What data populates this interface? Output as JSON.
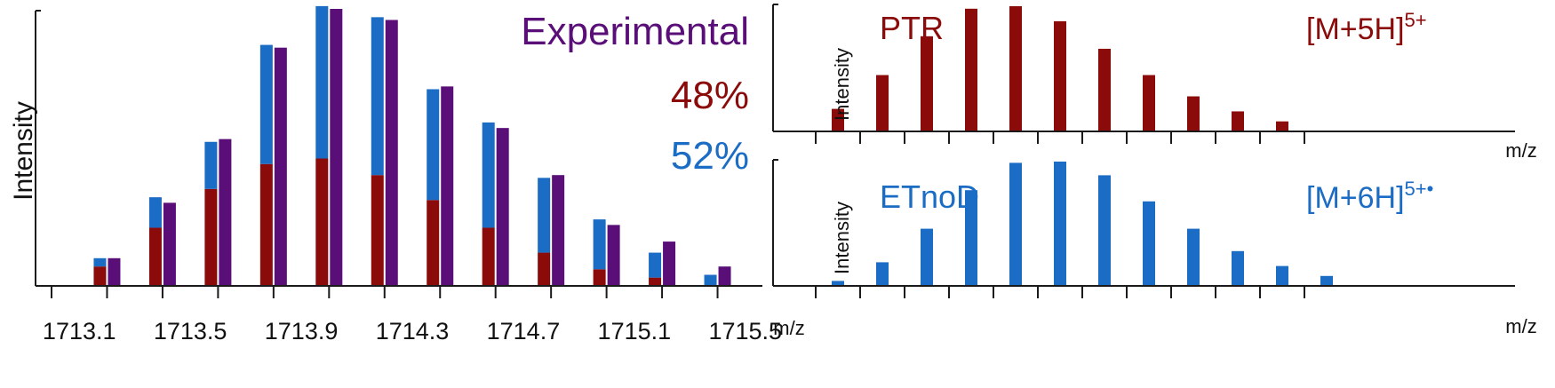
{
  "colors": {
    "experimental": "#5a0f78",
    "ptr": "#8b0a0a",
    "etnod": "#1a6cc4",
    "axis": "#1a1a1a"
  },
  "chart_data": [
    {
      "type": "bar",
      "panel": "left",
      "xlabel": "m/z",
      "ylabel": "Intensity",
      "x_tick_labels": [
        "1713.1",
        "1713.5",
        "1713.9",
        "1714.3",
        "1714.7",
        "1715.1",
        "1715.5"
      ],
      "xlim": [
        1713.0,
        1715.6
      ],
      "ylim": [
        0,
        100
      ],
      "annotations": {
        "experimental": "Experimental",
        "ptr_percent": "48%",
        "etnod_percent": "52%"
      },
      "x": [
        1713.2,
        1713.4,
        1713.6,
        1713.8,
        1714.0,
        1714.2,
        1714.4,
        1714.6,
        1714.8,
        1715.0,
        1715.2,
        1715.4
      ],
      "series": [
        {
          "name": "PTR",
          "stack": "fit",
          "values": [
            7,
            21,
            35,
            44,
            46,
            40,
            31,
            21,
            12,
            6,
            3,
            0
          ]
        },
        {
          "name": "ETnoD",
          "stack": "fit",
          "values": [
            3,
            11,
            17,
            43,
            55,
            57,
            40,
            38,
            27,
            18,
            9,
            4
          ]
        },
        {
          "name": "Experimental",
          "values": [
            10,
            30,
            53,
            86,
            100,
            96,
            72,
            57,
            40,
            22,
            16,
            7
          ]
        }
      ]
    },
    {
      "type": "bar",
      "panel": "top-right",
      "title": "PTR",
      "ion": "[M+5H]",
      "ion_charge": "5+",
      "xlabel": "m/z",
      "ylabel": "Intensity",
      "ylim": [
        0,
        100
      ],
      "values": [
        18,
        45,
        76,
        98,
        100,
        88,
        66,
        45,
        28,
        16,
        8
      ]
    },
    {
      "type": "bar",
      "panel": "bottom-right",
      "title": "ETnoD",
      "ion": "[M+6H]",
      "ion_charge": "5+•",
      "xlabel": "m/z",
      "ylabel": "Intensity",
      "ylim": [
        0,
        100
      ],
      "values": [
        4,
        19,
        46,
        77,
        99,
        100,
        89,
        68,
        46,
        28,
        16,
        8
      ]
    }
  ]
}
